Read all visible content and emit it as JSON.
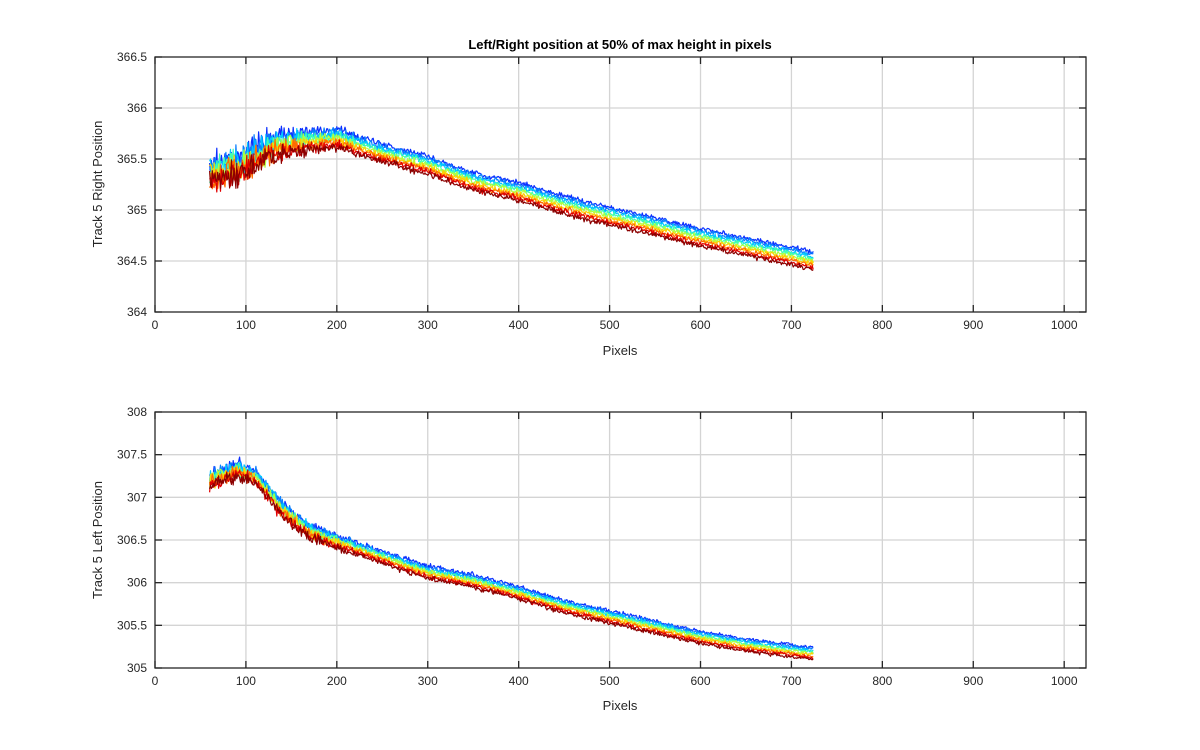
{
  "chart_data": [
    {
      "type": "line",
      "title": "Left/Right position at 50% of max height in pixels",
      "xlabel": "Pixels",
      "ylabel": "Track 5 Right Position",
      "xlim": [
        0,
        1024
      ],
      "ylim": [
        364,
        366.5
      ],
      "xticks": [
        0,
        100,
        200,
        300,
        400,
        500,
        600,
        700,
        800,
        900,
        1000
      ],
      "yticks": [
        364,
        364.5,
        365,
        365.5,
        366,
        366.5
      ],
      "xtick_labels": [
        "0",
        "100",
        "200",
        "300",
        "400",
        "500",
        "600",
        "700",
        "800",
        "900",
        "1000"
      ],
      "ytick_labels": [
        "364",
        "364.5",
        "365",
        "365.5",
        "366",
        "366.5"
      ],
      "grid": true,
      "x_range": [
        60,
        724
      ],
      "series_colors": [
        "#0a2fff",
        "#0a7fff",
        "#00c8ff",
        "#40ffb0",
        "#b0ff40",
        "#ffd000",
        "#ff6a00",
        "#e00000",
        "#8b0000"
      ],
      "profile": [
        {
          "x": 60,
          "y": 365.35
        },
        {
          "x": 100,
          "y": 365.45
        },
        {
          "x": 130,
          "y": 365.62
        },
        {
          "x": 170,
          "y": 365.68
        },
        {
          "x": 200,
          "y": 365.7
        },
        {
          "x": 250,
          "y": 365.56
        },
        {
          "x": 300,
          "y": 365.44
        },
        {
          "x": 350,
          "y": 365.28
        },
        {
          "x": 400,
          "y": 365.18
        },
        {
          "x": 450,
          "y": 365.05
        },
        {
          "x": 500,
          "y": 364.94
        },
        {
          "x": 550,
          "y": 364.84
        },
        {
          "x": 600,
          "y": 364.73
        },
        {
          "x": 650,
          "y": 364.64
        },
        {
          "x": 700,
          "y": 364.55
        },
        {
          "x": 724,
          "y": 364.5
        }
      ],
      "series_spread": 0.17,
      "noise": [
        {
          "x": 60,
          "amp": 0.22
        },
        {
          "x": 110,
          "amp": 0.2
        },
        {
          "x": 170,
          "amp": 0.1
        },
        {
          "x": 230,
          "amp": 0.05
        },
        {
          "x": 400,
          "amp": 0.04
        },
        {
          "x": 724,
          "amp": 0.035
        }
      ]
    },
    {
      "type": "line",
      "title": "",
      "xlabel": "Pixels",
      "ylabel": "Track 5 Left Position",
      "xlim": [
        0,
        1024
      ],
      "ylim": [
        305,
        308
      ],
      "xticks": [
        0,
        100,
        200,
        300,
        400,
        500,
        600,
        700,
        800,
        900,
        1000
      ],
      "yticks": [
        305,
        305.5,
        306,
        306.5,
        307,
        307.5,
        308
      ],
      "xtick_labels": [
        "0",
        "100",
        "200",
        "300",
        "400",
        "500",
        "600",
        "700",
        "800",
        "900",
        "1000"
      ],
      "ytick_labels": [
        "305",
        "305.5",
        "306",
        "306.5",
        "307",
        "307.5",
        "308"
      ],
      "grid": true,
      "x_range": [
        60,
        724
      ],
      "series_colors": [
        "#0a2fff",
        "#0a7fff",
        "#00c8ff",
        "#40ffb0",
        "#b0ff40",
        "#ffd000",
        "#ff6a00",
        "#e00000",
        "#8b0000"
      ],
      "profile": [
        {
          "x": 60,
          "y": 307.2
        },
        {
          "x": 90,
          "y": 307.32
        },
        {
          "x": 110,
          "y": 307.25
        },
        {
          "x": 140,
          "y": 306.85
        },
        {
          "x": 170,
          "y": 306.6
        },
        {
          "x": 200,
          "y": 306.48
        },
        {
          "x": 250,
          "y": 306.3
        },
        {
          "x": 300,
          "y": 306.12
        },
        {
          "x": 350,
          "y": 306.02
        },
        {
          "x": 400,
          "y": 305.88
        },
        {
          "x": 450,
          "y": 305.72
        },
        {
          "x": 500,
          "y": 305.6
        },
        {
          "x": 550,
          "y": 305.48
        },
        {
          "x": 600,
          "y": 305.36
        },
        {
          "x": 650,
          "y": 305.27
        },
        {
          "x": 700,
          "y": 305.2
        },
        {
          "x": 724,
          "y": 305.17
        }
      ],
      "series_spread": 0.14,
      "noise": [
        {
          "x": 60,
          "amp": 0.12
        },
        {
          "x": 110,
          "amp": 0.1
        },
        {
          "x": 170,
          "amp": 0.1
        },
        {
          "x": 230,
          "amp": 0.05
        },
        {
          "x": 400,
          "amp": 0.04
        },
        {
          "x": 724,
          "amp": 0.03
        }
      ]
    }
  ]
}
